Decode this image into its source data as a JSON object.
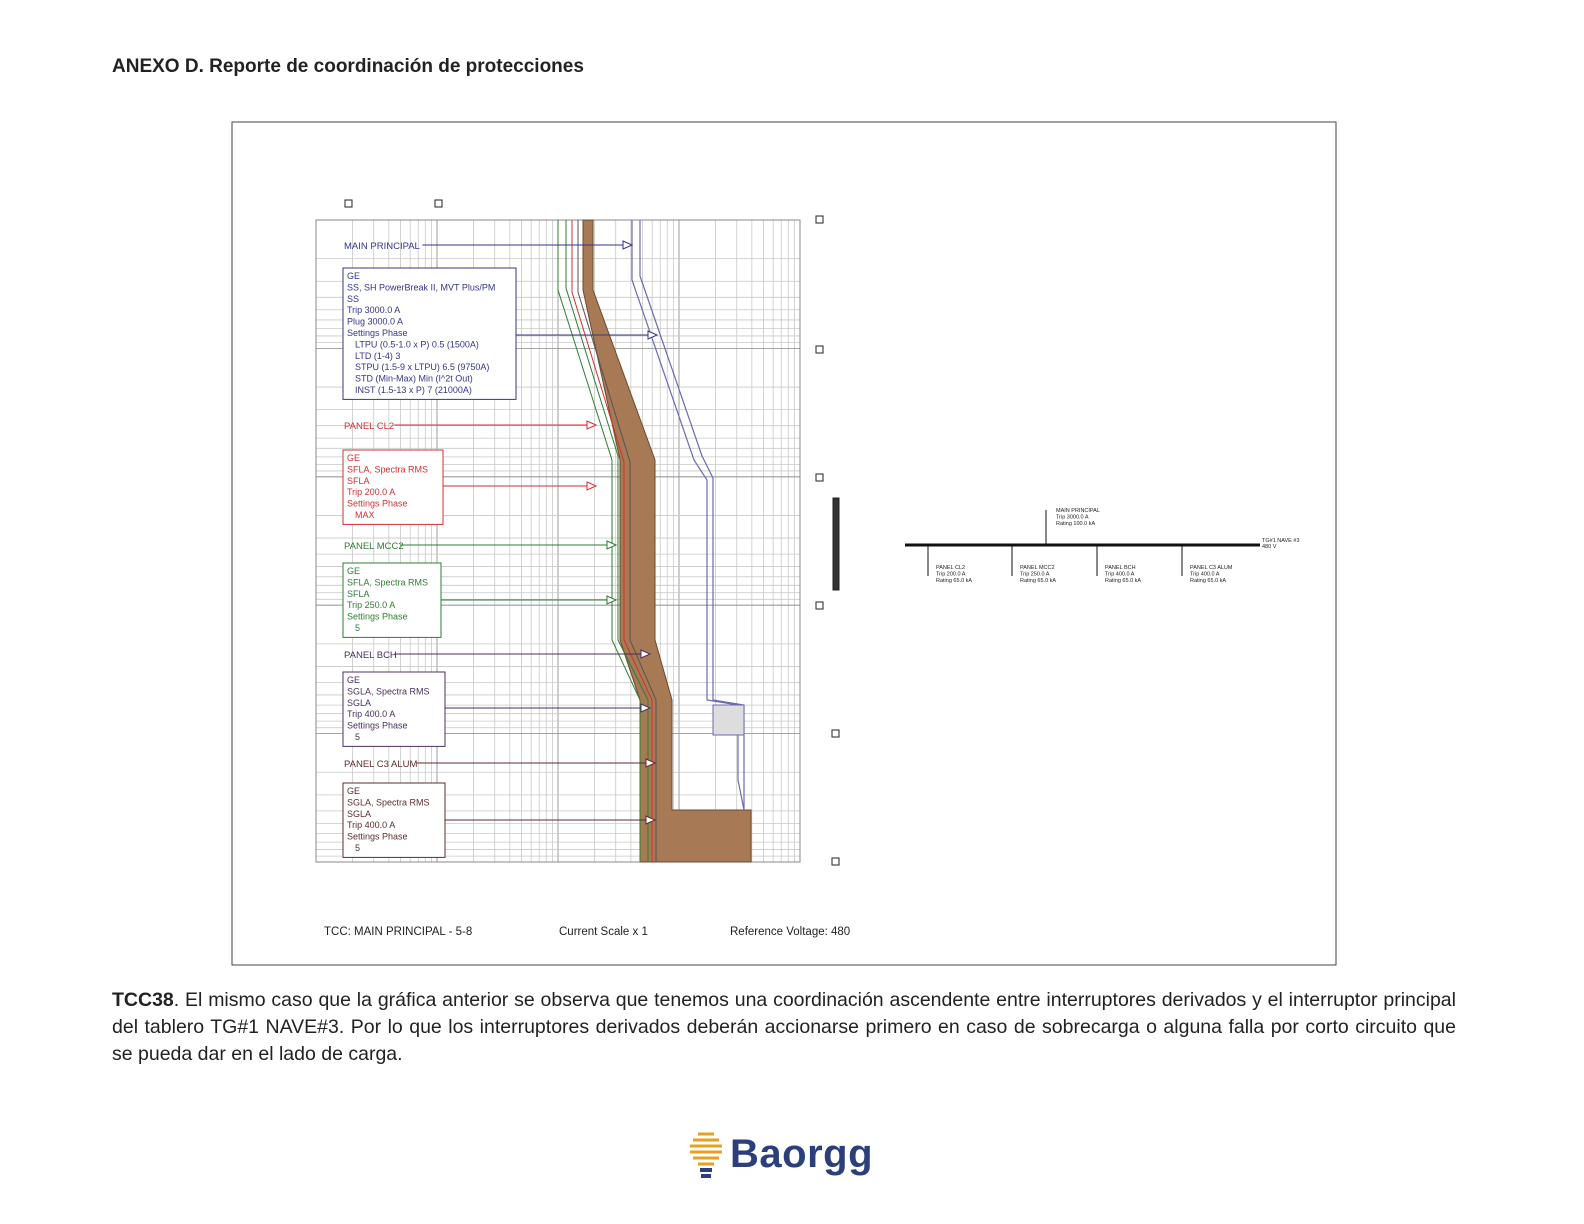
{
  "header": {
    "title": "ANEXO D. Reporte de coordinación de protecciones"
  },
  "figure": {
    "devices": [
      {
        "name": "MAIN PRINCIPAL",
        "color": "#34348a",
        "lines": [
          "GE",
          "SS, SH PowerBreak II, MVT Plus/PM",
          "SS",
          "Trip 3000.0 A",
          "Plug 3000.0 A",
          "Settings Phase",
          "LTPU (0.5-1.0 x P) 0.5 (1500A)",
          "LTD (1-4) 3",
          "STPU (1.5-9 x LTPU) 6.5 (9750A)",
          "STD (Min-Max) Min (I^2t Out)",
          "INST (1.5-13 x P) 7 (21000A)"
        ]
      },
      {
        "name": "PANEL CL2",
        "color": "#d23030",
        "lines": [
          "GE",
          "SFLA, Spectra RMS",
          "SFLA",
          "Trip 200.0 A",
          "Settings Phase",
          "MAX"
        ]
      },
      {
        "name": "PANEL MCC2",
        "color": "#2e7d32",
        "lines": [
          "GE",
          "SFLA, Spectra RMS",
          "SFLA",
          "Trip 250.0 A",
          "Settings Phase",
          "5"
        ]
      },
      {
        "name": "PANEL BCH",
        "color": "#4a2f5e",
        "lines": [
          "GE",
          "SGLA, Spectra RMS",
          "SGLA",
          "Trip 400.0 A",
          "Settings Phase",
          "5"
        ]
      },
      {
        "name": "PANEL C3 ALUM",
        "color": "#5a2e2e",
        "lines": [
          "GE",
          "SGLA, Spectra RMS",
          "SGLA",
          "Trip 400.0 A",
          "Settings Phase",
          "5"
        ]
      }
    ],
    "footer": [
      "TCC:  MAIN PRINCIPAL - 5-8",
      "Current Scale  x 1",
      "Reference Voltage: 480"
    ]
  },
  "one_line": {
    "bus": [
      "TG#1 NAVE #3",
      "480 V"
    ],
    "main": [
      "MAIN PRINCIPAL",
      "Trip 3000.0 A",
      "Rating 100.0 kA"
    ],
    "feeders": [
      [
        "PANEL CL2",
        "Trip 200.0 A",
        "Rating 65.0 kA"
      ],
      [
        "PANEL MCC2",
        "Trip 250.0 A",
        "Rating 65.0 kA"
      ],
      [
        "PANEL BCH",
        "Trip 400.0 A",
        "Rating 65.0 kA"
      ],
      [
        "PANEL C3 ALUM",
        "Trip 400.0 A",
        "Rating 65.0 kA"
      ]
    ]
  },
  "caption": {
    "label": "TCC38",
    "text": ". El mismo caso que la gráfica anterior se observa que tenemos una coordinación ascendente entre interruptores derivados y el interruptor principal del tablero TG#1 NAVE#3. Por lo que los interruptores derivados deberán accionarse primero en caso de sobrecarga o alguna falla por corto circuito que se pueda dar en el lado de carga."
  },
  "logo": {
    "text": "Baorgg"
  }
}
